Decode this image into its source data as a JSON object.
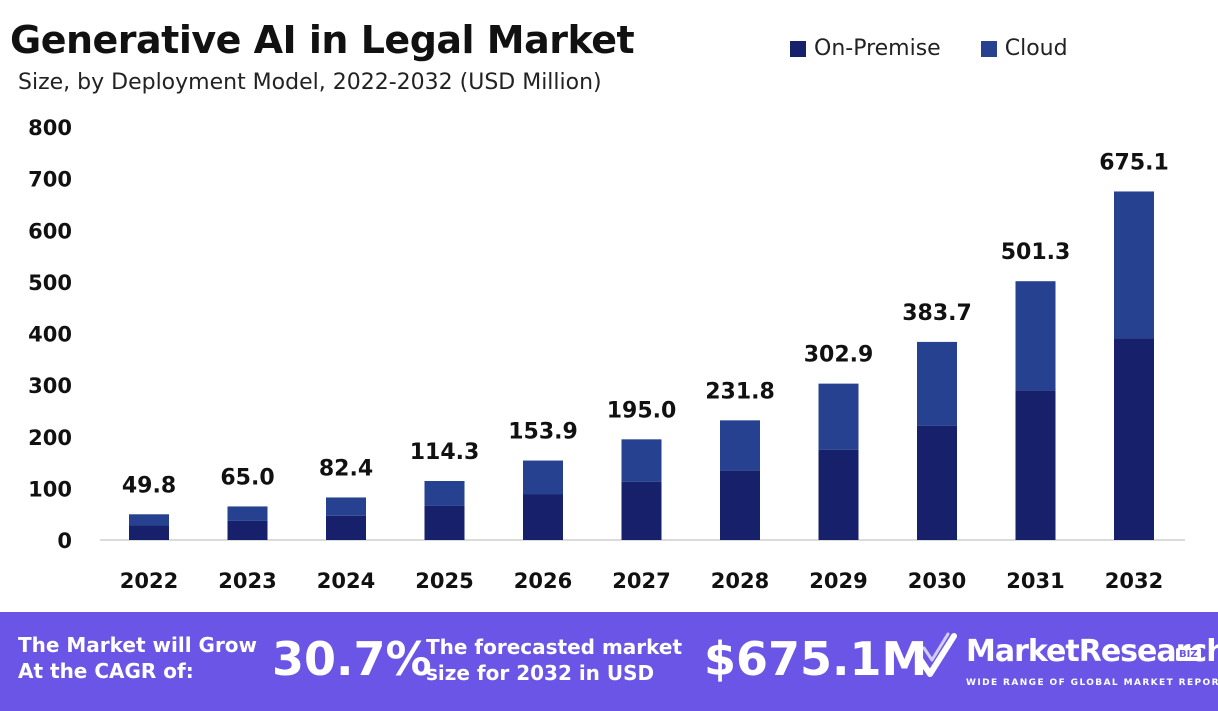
{
  "chart_data": {
    "type": "bar",
    "stacked": true,
    "title": "Generative AI in Legal Market",
    "subtitle": "Size, by Deployment Model, 2022-2032 (USD Million)",
    "categories": [
      "2022",
      "2023",
      "2024",
      "2025",
      "2026",
      "2027",
      "2028",
      "2029",
      "2030",
      "2031",
      "2032"
    ],
    "series": [
      {
        "name": "On-Premise",
        "color": "#16206b",
        "values": [
          28,
          37,
          47,
          66,
          89,
          113,
          135,
          175,
          221,
          290,
          391
        ]
      },
      {
        "name": "Cloud",
        "color": "#25418f",
        "values": [
          21.8,
          28,
          35.4,
          48.3,
          64.9,
          82,
          96.8,
          127.9,
          162.7,
          211.3,
          284.1
        ]
      }
    ],
    "totals": [
      "49.8",
      "65.0",
      "82.4",
      "114.3",
      "153.9",
      "195.0",
      "231.8",
      "302.9",
      "383.7",
      "501.3",
      "675.1"
    ],
    "totals_values": [
      49.8,
      65.0,
      82.4,
      114.3,
      153.9,
      195.0,
      231.8,
      302.9,
      383.7,
      501.3,
      675.1
    ],
    "yticks": [
      "0",
      "100",
      "200",
      "300",
      "400",
      "500",
      "600",
      "700",
      "800"
    ],
    "ylim": [
      0,
      800
    ],
    "grid": false,
    "legend_position": "top-right",
    "xlabel": "",
    "ylabel": ""
  },
  "footer": {
    "cagr_line1": "The Market will Grow",
    "cagr_line2": "At the CAGR of:",
    "cagr_value": "30.7%",
    "forecast_line1": "The forecasted market",
    "forecast_line2": "size for 2032 in USD",
    "forecast_value": "$675.1M",
    "background": "#6a55e6"
  },
  "brand": {
    "name": "MarketResearch",
    "badge": "BIZ",
    "tagline": "WIDE RANGE OF GLOBAL MARKET REPORTS",
    "icon": "checkmark-logo-icon"
  }
}
